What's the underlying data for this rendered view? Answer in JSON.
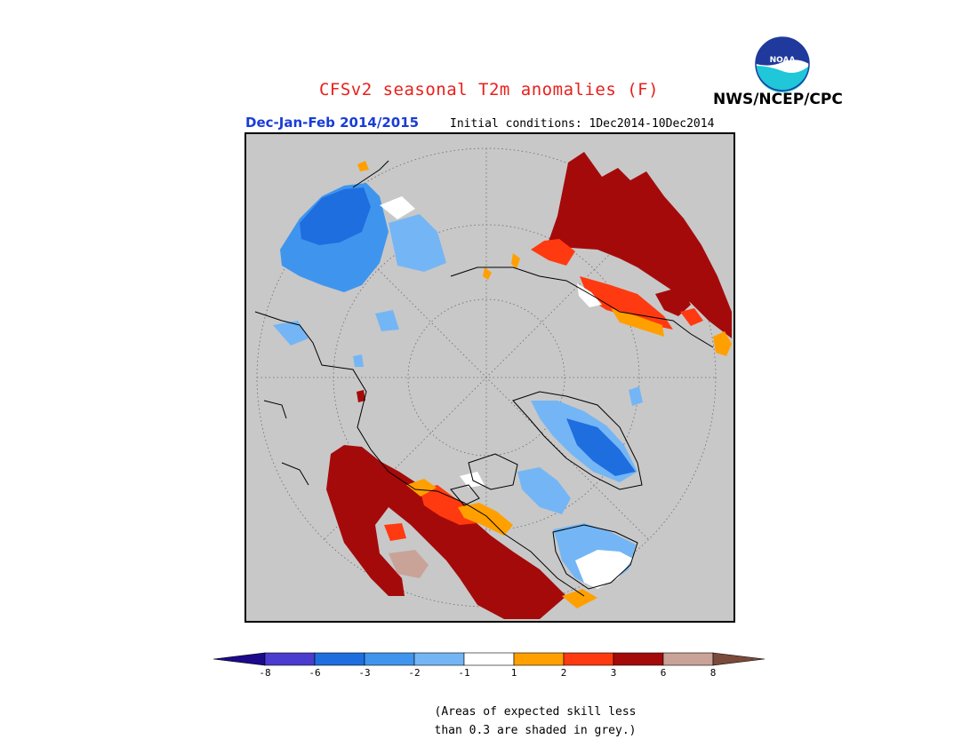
{
  "header": {
    "title": "CFSv2 seasonal T2m anomalies (F)",
    "agency": "NWS/NCEP/CPC",
    "logo_text": "NOAA",
    "season": "Dec-Jan-Feb 2014/2015",
    "initial_conditions": "Initial conditions: 1Dec2014-10Dec2014"
  },
  "legend": {
    "ticks": [
      "-8",
      "-6",
      "-3",
      "-2",
      "-1",
      "1",
      "2",
      "3",
      "6",
      "8"
    ],
    "colors": [
      "#1c0a8c",
      "#4a3ccf",
      "#1e6ee0",
      "#3f95ee",
      "#74b6f5",
      "#ffffff",
      "#ffa000",
      "#ff3a10",
      "#a50a0a",
      "#c9a398",
      "#7a4a3a"
    ]
  },
  "footnote": {
    "line1": "(Areas of expected skill less",
    "line2": "than 0.3 are shaded in grey.)"
  },
  "map": {
    "projection": "north polar stereographic",
    "background_color": "#c8c8c8"
  }
}
